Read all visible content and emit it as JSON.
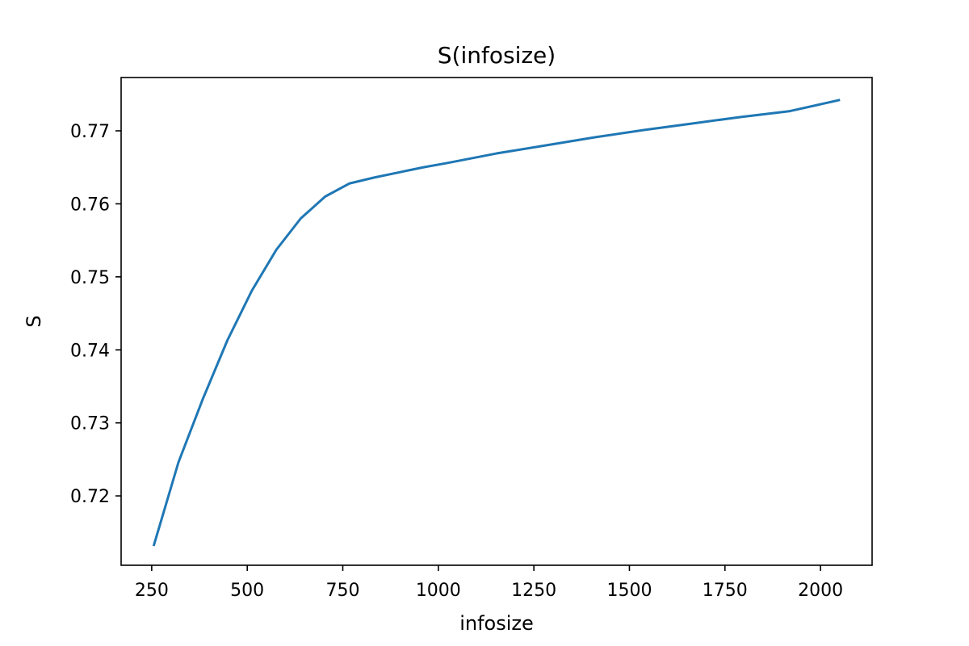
{
  "chart_data": {
    "type": "line",
    "title": "S(infosize)",
    "xlabel": "infosize",
    "ylabel": "S",
    "xlim": [
      170,
      2135
    ],
    "ylim": [
      0.7105,
      0.7773
    ],
    "xticks": [
      250,
      500,
      750,
      1000,
      1250,
      1500,
      1750,
      2000
    ],
    "xtick_labels": [
      "250",
      "500",
      "750",
      "1000",
      "1250",
      "1500",
      "1750",
      "2000"
    ],
    "yticks": [
      0.72,
      0.73,
      0.74,
      0.75,
      0.76,
      0.77
    ],
    "ytick_labels": [
      "0.72",
      "0.73",
      "0.74",
      "0.75",
      "0.76",
      "0.77"
    ],
    "grid": false,
    "series": [
      {
        "color": "#1f77b4",
        "x": [
          256,
          320,
          384,
          448,
          512,
          576,
          640,
          704,
          768,
          832,
          896,
          960,
          1024,
          1152,
          1280,
          1408,
          1536,
          1664,
          1792,
          1920,
          2048
        ],
        "y": [
          0.7133,
          0.7246,
          0.7333,
          0.7413,
          0.7481,
          0.7537,
          0.758,
          0.761,
          0.7628,
          0.7636,
          0.7643,
          0.765,
          0.7656,
          0.7669,
          0.768,
          0.7691,
          0.7701,
          0.771,
          0.7719,
          0.7727,
          0.7742
        ]
      }
    ]
  }
}
